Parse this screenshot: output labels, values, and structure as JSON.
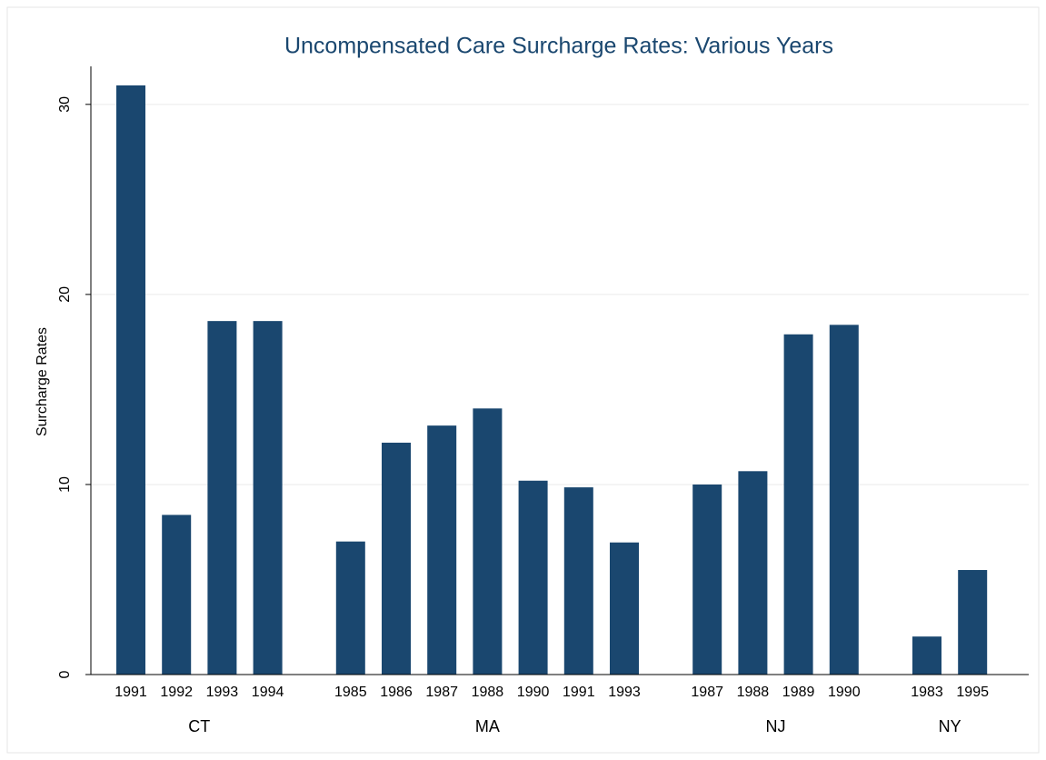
{
  "chart_data": {
    "type": "bar",
    "title": "Uncompensated Care Surcharge Rates: Various Years",
    "y_label": "Surcharge Rates",
    "color": "#1a476f",
    "groups": [
      {
        "name": "CT",
        "categories": [
          "1991",
          "1992",
          "1993",
          "1994"
        ],
        "values": [
          31,
          8.4,
          18.6,
          18.6
        ]
      },
      {
        "name": "MA",
        "categories": [
          "1985",
          "1986",
          "1987",
          "1988",
          "1990",
          "1991",
          "1993"
        ],
        "values": [
          7.0,
          12.2,
          13.1,
          14.0,
          10.2,
          9.85,
          6.95
        ]
      },
      {
        "name": "NJ",
        "categories": [
          "1987",
          "1988",
          "1989",
          "1990"
        ],
        "values": [
          10.0,
          10.7,
          17.9,
          18.4
        ]
      },
      {
        "name": "NY",
        "categories": [
          "1983",
          "1995"
        ],
        "values": [
          2.0,
          5.5
        ]
      }
    ],
    "ylim": [
      0,
      32
    ],
    "yticks": [
      0,
      10,
      20,
      30
    ],
    "grid": true
  }
}
